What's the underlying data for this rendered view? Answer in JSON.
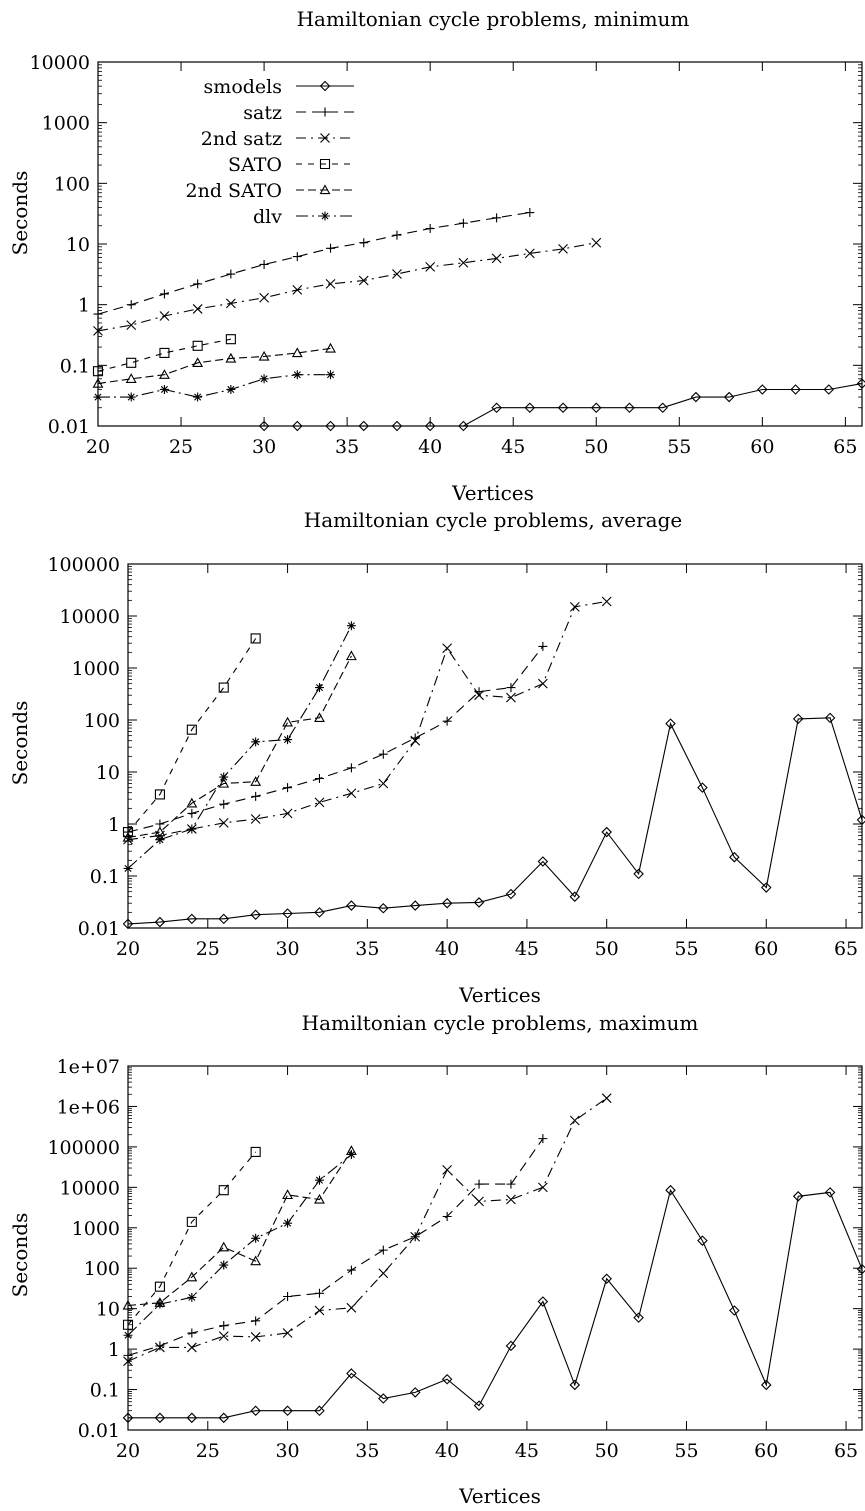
{
  "chart_data": [
    {
      "type": "line",
      "title": "Hamiltonian cycle problems, minimum",
      "xlabel": "Vertices",
      "ylabel": "Seconds",
      "yscale": "log",
      "xlim": [
        20,
        66
      ],
      "ylim": [
        0.01,
        10000
      ],
      "xticks": [
        20,
        25,
        30,
        35,
        40,
        45,
        50,
        55,
        60,
        65
      ],
      "yticks": [
        {
          "value": 0.01,
          "label": "0.01"
        },
        {
          "value": 0.1,
          "label": "0.1"
        },
        {
          "value": 1,
          "label": "1"
        },
        {
          "value": 10,
          "label": "10"
        },
        {
          "value": 100,
          "label": "100"
        },
        {
          "value": 1000,
          "label": "1000"
        },
        {
          "value": 10000,
          "label": "10000"
        }
      ],
      "legend": "top-left",
      "series": [
        {
          "name": "smodels",
          "marker": "diamond",
          "dash": "solid",
          "x": [
            30,
            32,
            34,
            36,
            38,
            40,
            42,
            44,
            46,
            48,
            50,
            52,
            54,
            56,
            58,
            60,
            62,
            64,
            66
          ],
          "y": [
            0.01,
            0.01,
            0.01,
            0.01,
            0.01,
            0.01,
            0.01,
            0.02,
            0.02,
            0.02,
            0.02,
            0.02,
            0.02,
            0.03,
            0.03,
            0.04,
            0.04,
            0.04,
            0.05
          ]
        },
        {
          "name": "satz",
          "marker": "plus",
          "dash": "dashed",
          "x": [
            20,
            22,
            24,
            26,
            28,
            30,
            32,
            34,
            36,
            38,
            40,
            42,
            44,
            46
          ],
          "y": [
            0.7,
            1.0,
            1.5,
            2.2,
            3.2,
            4.6,
            6.2,
            8.5,
            10.5,
            14,
            18,
            22,
            27,
            33
          ]
        },
        {
          "name": "2nd satz",
          "marker": "cross",
          "dash": "dashdot",
          "x": [
            20,
            22,
            24,
            26,
            28,
            30,
            32,
            34,
            36,
            38,
            40,
            42,
            44,
            46,
            48,
            50
          ],
          "y": [
            0.37,
            0.46,
            0.65,
            0.85,
            1.05,
            1.3,
            1.75,
            2.2,
            2.5,
            3.2,
            4.2,
            4.9,
            5.8,
            7.0,
            8.3,
            10.5
          ]
        },
        {
          "name": "SATO",
          "marker": "square",
          "dash": "dashed2",
          "x": [
            20,
            22,
            24,
            26,
            28
          ],
          "y": [
            0.08,
            0.11,
            0.16,
            0.21,
            0.27
          ]
        },
        {
          "name": "2nd SATO",
          "marker": "triangle",
          "dash": "dashed3",
          "x": [
            20,
            22,
            24,
            26,
            28,
            30,
            32,
            34
          ],
          "y": [
            0.05,
            0.06,
            0.07,
            0.11,
            0.13,
            0.14,
            0.16,
            0.19
          ]
        },
        {
          "name": "dlv",
          "marker": "star",
          "dash": "dashdot2",
          "x": [
            20,
            22,
            24,
            26,
            28,
            30,
            32,
            34
          ],
          "y": [
            0.03,
            0.03,
            0.04,
            0.03,
            0.04,
            0.06,
            0.07,
            0.07
          ]
        }
      ]
    },
    {
      "type": "line",
      "title": "Hamiltonian cycle problems, average",
      "xlabel": "Vertices",
      "ylabel": "Seconds",
      "yscale": "log",
      "xlim": [
        20,
        66
      ],
      "ylim": [
        0.01,
        100000
      ],
      "xticks": [
        20,
        25,
        30,
        35,
        40,
        45,
        50,
        55,
        60,
        65
      ],
      "yticks": [
        {
          "value": 0.01,
          "label": "0.01"
        },
        {
          "value": 0.1,
          "label": "0.1"
        },
        {
          "value": 1,
          "label": "1"
        },
        {
          "value": 10,
          "label": "10"
        },
        {
          "value": 100,
          "label": "100"
        },
        {
          "value": 1000,
          "label": "1000"
        },
        {
          "value": 10000,
          "label": "10000"
        },
        {
          "value": 100000,
          "label": "100000"
        }
      ],
      "series": [
        {
          "name": "smodels",
          "marker": "diamond",
          "dash": "solid",
          "x": [
            20,
            22,
            24,
            26,
            28,
            30,
            32,
            34,
            36,
            38,
            40,
            42,
            44,
            46,
            48,
            50,
            52,
            54,
            56,
            58,
            60,
            62,
            64,
            66
          ],
          "y": [
            0.012,
            0.013,
            0.015,
            0.015,
            0.018,
            0.019,
            0.02,
            0.027,
            0.024,
            0.027,
            0.03,
            0.031,
            0.045,
            0.19,
            0.04,
            0.7,
            0.11,
            85,
            5,
            0.23,
            0.06,
            105,
            110,
            1.2
          ]
        },
        {
          "name": "satz",
          "marker": "plus",
          "dash": "dashed",
          "x": [
            20,
            22,
            24,
            26,
            28,
            30,
            32,
            34,
            36,
            38,
            40,
            42,
            44,
            46
          ],
          "y": [
            0.7,
            1.0,
            1.6,
            2.4,
            3.4,
            5.0,
            7.5,
            12,
            22,
            45,
            95,
            350,
            420,
            2600
          ]
        },
        {
          "name": "2nd satz",
          "marker": "cross",
          "dash": "dashdot",
          "x": [
            20,
            22,
            24,
            26,
            28,
            30,
            32,
            34,
            36,
            38,
            40,
            42,
            44,
            46,
            48,
            50
          ],
          "y": [
            0.5,
            0.6,
            0.8,
            1.05,
            1.25,
            1.6,
            2.6,
            3.9,
            6.0,
            40,
            2400,
            300,
            270,
            500,
            15000,
            19000
          ]
        },
        {
          "name": "SATO",
          "marker": "square",
          "dash": "dashed2",
          "x": [
            20,
            22,
            24,
            26,
            28
          ],
          "y": [
            0.7,
            3.7,
            65,
            420,
            3700
          ]
        },
        {
          "name": "2nd SATO",
          "marker": "triangle",
          "dash": "dashed3",
          "x": [
            20,
            22,
            24,
            26,
            28,
            30,
            32,
            34
          ],
          "y": [
            0.55,
            0.7,
            2.5,
            6.0,
            6.5,
            90,
            110,
            1700
          ]
        },
        {
          "name": "dlv",
          "marker": "star",
          "dash": "dashdot2",
          "x": [
            20,
            22,
            24,
            26,
            28,
            30,
            32,
            34
          ],
          "y": [
            0.14,
            0.5,
            0.8,
            8.0,
            38,
            42,
            420,
            6500
          ]
        }
      ]
    },
    {
      "type": "line",
      "title": "Hamiltonian cycle problems, maximum",
      "xlabel": "Vertices",
      "ylabel": "Seconds",
      "yscale": "log",
      "xlim": [
        20,
        66
      ],
      "ylim": [
        0.01,
        10000000
      ],
      "xticks": [
        20,
        25,
        30,
        35,
        40,
        45,
        50,
        55,
        60,
        65
      ],
      "yticks": [
        {
          "value": 0.01,
          "label": "0.01"
        },
        {
          "value": 0.1,
          "label": "0.1"
        },
        {
          "value": 1,
          "label": "1"
        },
        {
          "value": 10,
          "label": "10"
        },
        {
          "value": 100,
          "label": "100"
        },
        {
          "value": 1000,
          "label": "1000"
        },
        {
          "value": 10000,
          "label": "10000"
        },
        {
          "value": 100000,
          "label": "100000"
        },
        {
          "value": 1000000,
          "label": "1e+06"
        },
        {
          "value": 10000000,
          "label": "1e+07"
        }
      ],
      "series": [
        {
          "name": "smodels",
          "marker": "diamond",
          "dash": "solid",
          "x": [
            20,
            22,
            24,
            26,
            28,
            30,
            32,
            34,
            36,
            38,
            40,
            42,
            44,
            46,
            48,
            50,
            52,
            54,
            56,
            58,
            60,
            62,
            64,
            66
          ],
          "y": [
            0.02,
            0.02,
            0.02,
            0.02,
            0.03,
            0.03,
            0.03,
            0.25,
            0.06,
            0.085,
            0.18,
            0.04,
            1.2,
            15,
            0.13,
            55,
            6,
            8500,
            480,
            9,
            0.13,
            6000,
            7500,
            95
          ]
        },
        {
          "name": "satz",
          "marker": "plus",
          "dash": "dashed",
          "x": [
            20,
            22,
            24,
            26,
            28,
            30,
            32,
            34,
            36,
            38,
            40,
            42,
            44,
            46
          ],
          "y": [
            0.7,
            1.2,
            2.5,
            3.8,
            5.0,
            20,
            24,
            90,
            280,
            600,
            1900,
            12000,
            12000,
            160000
          ]
        },
        {
          "name": "2nd satz",
          "marker": "cross",
          "dash": "dashdot",
          "x": [
            20,
            22,
            24,
            26,
            28,
            30,
            32,
            34,
            36,
            38,
            40,
            42,
            44,
            46,
            48,
            50
          ],
          "y": [
            0.5,
            1.1,
            1.1,
            2.1,
            2.0,
            2.5,
            9.0,
            10.5,
            75,
            600,
            27000,
            4500,
            5000,
            10000,
            450000,
            1600000
          ]
        },
        {
          "name": "SATO",
          "marker": "square",
          "dash": "dashed2",
          "x": [
            20,
            22,
            24,
            26,
            28
          ],
          "y": [
            4.0,
            35,
            1400,
            8500,
            75000
          ]
        },
        {
          "name": "2nd SATO",
          "marker": "triangle",
          "dash": "dashed3",
          "x": [
            20,
            22,
            24,
            26,
            28,
            30,
            32,
            34
          ],
          "y": [
            12,
            14,
            60,
            330,
            150,
            6500,
            5000,
            80000
          ]
        },
        {
          "name": "dlv",
          "marker": "star",
          "dash": "dashdot2",
          "x": [
            20,
            22,
            24,
            26,
            28,
            30,
            32,
            34
          ],
          "y": [
            2.2,
            13,
            19,
            120,
            550,
            1300,
            15000,
            65000
          ]
        }
      ]
    }
  ]
}
